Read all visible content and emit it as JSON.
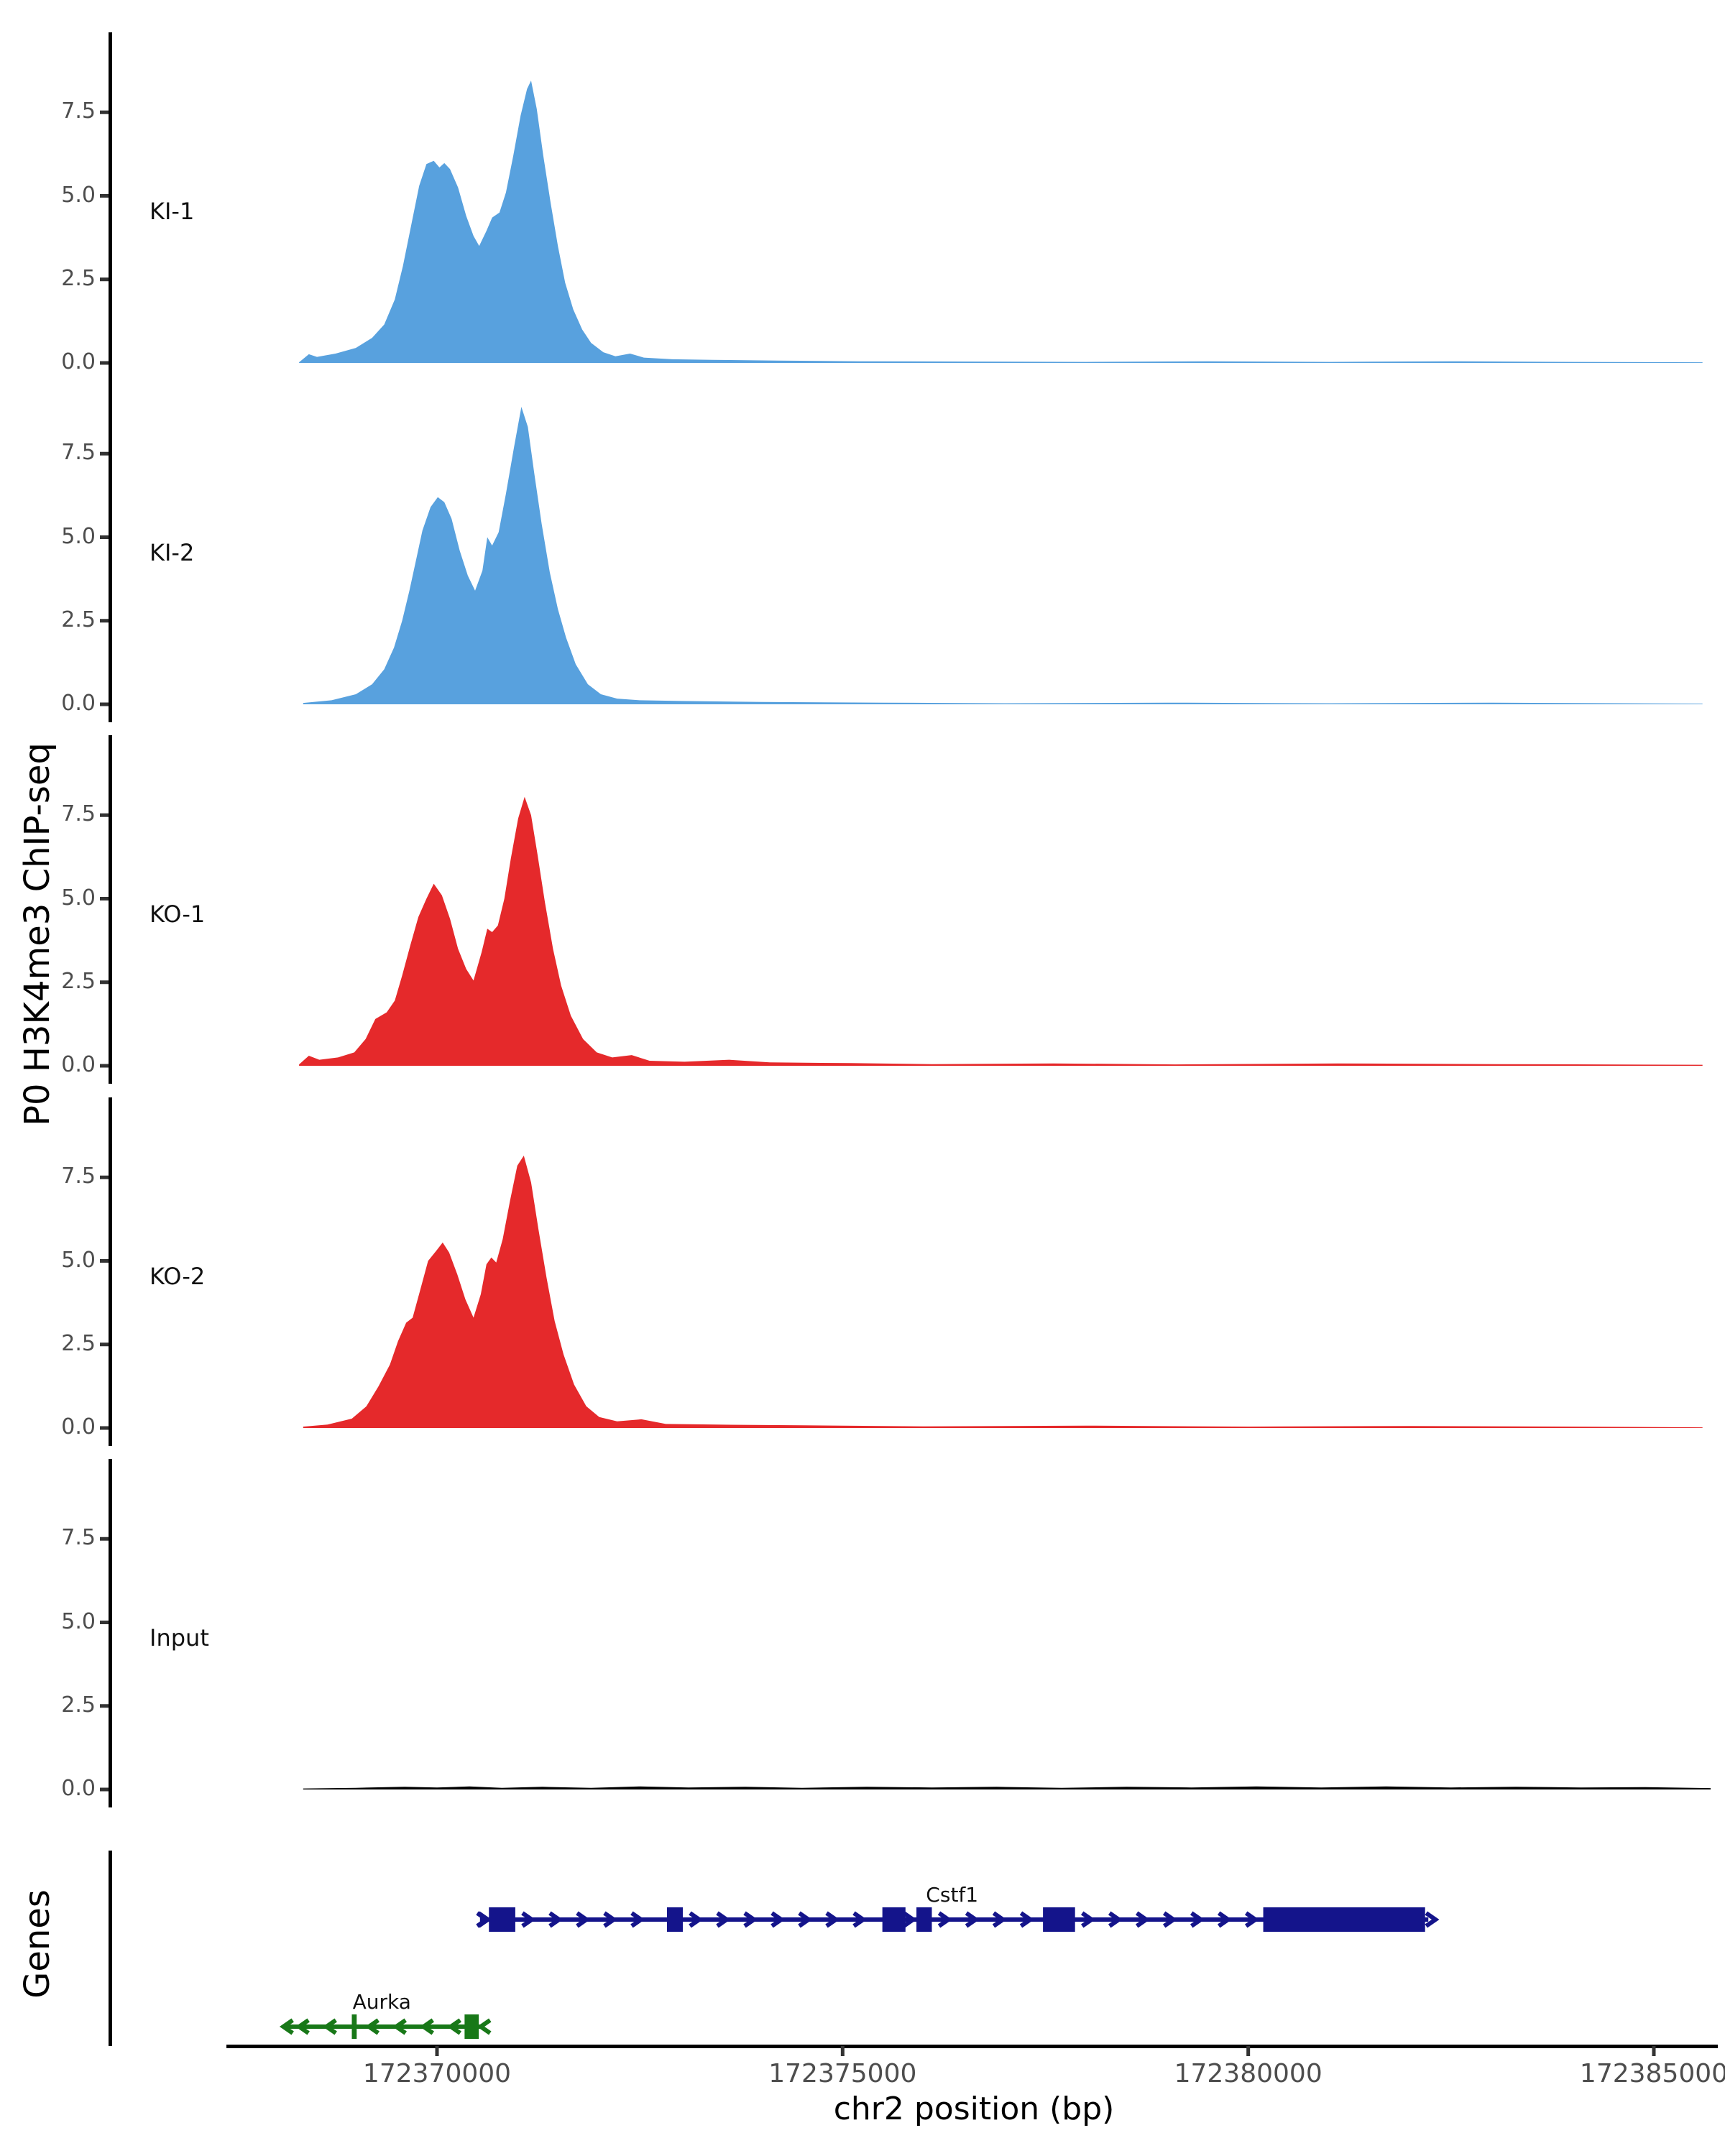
{
  "chart_data": {
    "type": "area",
    "title": "",
    "xlabel": "chr2 position (bp)",
    "ylabel": "P0 H3K4me3 ChIP-seq",
    "genes_label": "Genes",
    "x_range_bp": [
      172366075,
      172385790
    ],
    "ylim": [
      0,
      9.9
    ],
    "grid": false,
    "x_ticks": [
      {
        "bp": 172370000,
        "label": "172370000"
      },
      {
        "bp": 172375000,
        "label": "172375000"
      },
      {
        "bp": 172380000,
        "label": "172380000"
      },
      {
        "bp": 172385000,
        "label": "172385000"
      }
    ],
    "y_tick_labels": [
      {
        "v": 0.0,
        "label": "0.0"
      },
      {
        "v": 2.5,
        "label": "2.5"
      },
      {
        "v": 5.0,
        "label": "5.0"
      },
      {
        "v": 7.5,
        "label": "7.5"
      }
    ],
    "tracks": [
      {
        "label": "KI-1",
        "color": "#58A1DE",
        "profile": [
          [
            172368300,
            0.02
          ],
          [
            172368420,
            0.26
          ],
          [
            172368520,
            0.18
          ],
          [
            172368750,
            0.28
          ],
          [
            172369000,
            0.45
          ],
          [
            172369200,
            0.75
          ],
          [
            172369350,
            1.15
          ],
          [
            172369480,
            1.9
          ],
          [
            172369580,
            2.9
          ],
          [
            172369680,
            4.1
          ],
          [
            172369780,
            5.3
          ],
          [
            172369870,
            5.95
          ],
          [
            172369960,
            6.05
          ],
          [
            172370030,
            5.85
          ],
          [
            172370090,
            5.98
          ],
          [
            172370160,
            5.8
          ],
          [
            172370260,
            5.25
          ],
          [
            172370360,
            4.4
          ],
          [
            172370450,
            3.8
          ],
          [
            172370520,
            3.5
          ],
          [
            172370610,
            3.95
          ],
          [
            172370680,
            4.35
          ],
          [
            172370770,
            4.5
          ],
          [
            172370850,
            5.1
          ],
          [
            172370940,
            6.2
          ],
          [
            172371030,
            7.4
          ],
          [
            172371110,
            8.2
          ],
          [
            172371160,
            8.45
          ],
          [
            172371230,
            7.6
          ],
          [
            172371310,
            6.2
          ],
          [
            172371400,
            4.8
          ],
          [
            172371490,
            3.5
          ],
          [
            172371580,
            2.4
          ],
          [
            172371680,
            1.6
          ],
          [
            172371790,
            1.0
          ],
          [
            172371900,
            0.6
          ],
          [
            172372050,
            0.32
          ],
          [
            172372200,
            0.2
          ],
          [
            172372380,
            0.28
          ],
          [
            172372550,
            0.16
          ],
          [
            172372900,
            0.11
          ],
          [
            172373400,
            0.09
          ],
          [
            172374200,
            0.07
          ],
          [
            172375200,
            0.05
          ],
          [
            172376500,
            0.04
          ],
          [
            172378000,
            0.03
          ],
          [
            172379500,
            0.05
          ],
          [
            172381000,
            0.03
          ],
          [
            172382500,
            0.05
          ],
          [
            172384000,
            0.03
          ],
          [
            172385600,
            0.02
          ]
        ]
      },
      {
        "label": "KI-2",
        "color": "#58A1DE",
        "profile": [
          [
            172368350,
            0.04
          ],
          [
            172368700,
            0.12
          ],
          [
            172369000,
            0.3
          ],
          [
            172369200,
            0.6
          ],
          [
            172369350,
            1.05
          ],
          [
            172369470,
            1.7
          ],
          [
            172369570,
            2.5
          ],
          [
            172369660,
            3.4
          ],
          [
            172369740,
            4.3
          ],
          [
            172369820,
            5.2
          ],
          [
            172369920,
            5.9
          ],
          [
            172370010,
            6.2
          ],
          [
            172370090,
            6.05
          ],
          [
            172370180,
            5.55
          ],
          [
            172370280,
            4.6
          ],
          [
            172370380,
            3.85
          ],
          [
            172370470,
            3.4
          ],
          [
            172370560,
            4.0
          ],
          [
            172370620,
            5.0
          ],
          [
            172370680,
            4.75
          ],
          [
            172370760,
            5.15
          ],
          [
            172370850,
            6.3
          ],
          [
            172370950,
            7.7
          ],
          [
            172371040,
            8.9
          ],
          [
            172371120,
            8.3
          ],
          [
            172371200,
            6.9
          ],
          [
            172371290,
            5.4
          ],
          [
            172371390,
            3.95
          ],
          [
            172371490,
            2.85
          ],
          [
            172371590,
            2.0
          ],
          [
            172371710,
            1.2
          ],
          [
            172371860,
            0.6
          ],
          [
            172372020,
            0.3
          ],
          [
            172372220,
            0.17
          ],
          [
            172372500,
            0.12
          ],
          [
            172373000,
            0.1
          ],
          [
            172374000,
            0.07
          ],
          [
            172375500,
            0.05
          ],
          [
            172377000,
            0.03
          ],
          [
            172379000,
            0.05
          ],
          [
            172381000,
            0.03
          ],
          [
            172383000,
            0.05
          ],
          [
            172385600,
            0.02
          ]
        ]
      },
      {
        "label": "KO-1",
        "color": "#E5292B",
        "profile": [
          [
            172368300,
            0.04
          ],
          [
            172368420,
            0.3
          ],
          [
            172368550,
            0.18
          ],
          [
            172368780,
            0.25
          ],
          [
            172368980,
            0.4
          ],
          [
            172369120,
            0.8
          ],
          [
            172369240,
            1.4
          ],
          [
            172369380,
            1.6
          ],
          [
            172369480,
            1.95
          ],
          [
            172369570,
            2.7
          ],
          [
            172369670,
            3.6
          ],
          [
            172369770,
            4.45
          ],
          [
            172369870,
            5.0
          ],
          [
            172369960,
            5.45
          ],
          [
            172370060,
            5.1
          ],
          [
            172370160,
            4.4
          ],
          [
            172370260,
            3.5
          ],
          [
            172370360,
            2.9
          ],
          [
            172370450,
            2.55
          ],
          [
            172370550,
            3.4
          ],
          [
            172370620,
            4.1
          ],
          [
            172370680,
            4.0
          ],
          [
            172370750,
            4.2
          ],
          [
            172370830,
            5.0
          ],
          [
            172370910,
            6.2
          ],
          [
            172371000,
            7.4
          ],
          [
            172371080,
            8.05
          ],
          [
            172371160,
            7.5
          ],
          [
            172371240,
            6.3
          ],
          [
            172371330,
            4.9
          ],
          [
            172371430,
            3.5
          ],
          [
            172371530,
            2.4
          ],
          [
            172371650,
            1.5
          ],
          [
            172371800,
            0.8
          ],
          [
            172371970,
            0.4
          ],
          [
            172372160,
            0.25
          ],
          [
            172372400,
            0.32
          ],
          [
            172372620,
            0.15
          ],
          [
            172373050,
            0.12
          ],
          [
            172373600,
            0.18
          ],
          [
            172374100,
            0.1
          ],
          [
            172375100,
            0.08
          ],
          [
            172376100,
            0.05
          ],
          [
            172377600,
            0.07
          ],
          [
            172379100,
            0.04
          ],
          [
            172381100,
            0.07
          ],
          [
            172383100,
            0.05
          ],
          [
            172385600,
            0.03
          ]
        ]
      },
      {
        "label": "KO-2",
        "color": "#E5292B",
        "profile": [
          [
            172368350,
            0.04
          ],
          [
            172368650,
            0.1
          ],
          [
            172368950,
            0.28
          ],
          [
            172369130,
            0.65
          ],
          [
            172369280,
            1.25
          ],
          [
            172369420,
            1.9
          ],
          [
            172369520,
            2.6
          ],
          [
            172369620,
            3.15
          ],
          [
            172369700,
            3.3
          ],
          [
            172369790,
            4.1
          ],
          [
            172369890,
            5.0
          ],
          [
            172369990,
            5.3
          ],
          [
            172370070,
            5.55
          ],
          [
            172370150,
            5.25
          ],
          [
            172370250,
            4.6
          ],
          [
            172370350,
            3.85
          ],
          [
            172370450,
            3.3
          ],
          [
            172370540,
            4.0
          ],
          [
            172370610,
            4.9
          ],
          [
            172370670,
            5.1
          ],
          [
            172370730,
            4.95
          ],
          [
            172370810,
            5.65
          ],
          [
            172370900,
            6.8
          ],
          [
            172370990,
            7.85
          ],
          [
            172371070,
            8.15
          ],
          [
            172371160,
            7.35
          ],
          [
            172371250,
            5.95
          ],
          [
            172371350,
            4.5
          ],
          [
            172371450,
            3.2
          ],
          [
            172371560,
            2.2
          ],
          [
            172371690,
            1.3
          ],
          [
            172371840,
            0.65
          ],
          [
            172372000,
            0.33
          ],
          [
            172372220,
            0.2
          ],
          [
            172372520,
            0.26
          ],
          [
            172372820,
            0.12
          ],
          [
            172373450,
            0.1
          ],
          [
            172374500,
            0.08
          ],
          [
            172376000,
            0.05
          ],
          [
            172378000,
            0.07
          ],
          [
            172380000,
            0.04
          ],
          [
            172382000,
            0.06
          ],
          [
            172384000,
            0.04
          ],
          [
            172385600,
            0.02
          ]
        ]
      },
      {
        "label": "Input",
        "color": "#000000",
        "profile": [
          [
            172368350,
            0.03
          ],
          [
            172369000,
            0.05
          ],
          [
            172369600,
            0.08
          ],
          [
            172370000,
            0.06
          ],
          [
            172370400,
            0.09
          ],
          [
            172370800,
            0.05
          ],
          [
            172371300,
            0.08
          ],
          [
            172371900,
            0.05
          ],
          [
            172372500,
            0.09
          ],
          [
            172373100,
            0.06
          ],
          [
            172373800,
            0.08
          ],
          [
            172374500,
            0.05
          ],
          [
            172375300,
            0.08
          ],
          [
            172376100,
            0.06
          ],
          [
            172376900,
            0.08
          ],
          [
            172377700,
            0.05
          ],
          [
            172378500,
            0.08
          ],
          [
            172379300,
            0.06
          ],
          [
            172380100,
            0.09
          ],
          [
            172380900,
            0.06
          ],
          [
            172381700,
            0.09
          ],
          [
            172382500,
            0.06
          ],
          [
            172383300,
            0.08
          ],
          [
            172384100,
            0.06
          ],
          [
            172384900,
            0.07
          ],
          [
            172385700,
            0.04
          ]
        ]
      }
    ],
    "genes": [
      {
        "name": "Cstf1",
        "strand": "+",
        "color": "#14148B",
        "start": 172370530,
        "end": 172382220,
        "label_bp": 172376350,
        "exons": [
          [
            172370640,
            172370965
          ],
          [
            172372835,
            172373030
          ],
          [
            172375490,
            172375775
          ],
          [
            172375910,
            172376100
          ],
          [
            172377470,
            172377865
          ],
          [
            172380185,
            172382180
          ]
        ]
      },
      {
        "name": "Aurka",
        "strand": "-",
        "color": "#187818",
        "start": 172368150,
        "end": 172370530,
        "label_bp": 172369320,
        "exons": [
          [
            172368950,
            172369010
          ],
          [
            172370340,
            172370515
          ]
        ]
      }
    ]
  }
}
